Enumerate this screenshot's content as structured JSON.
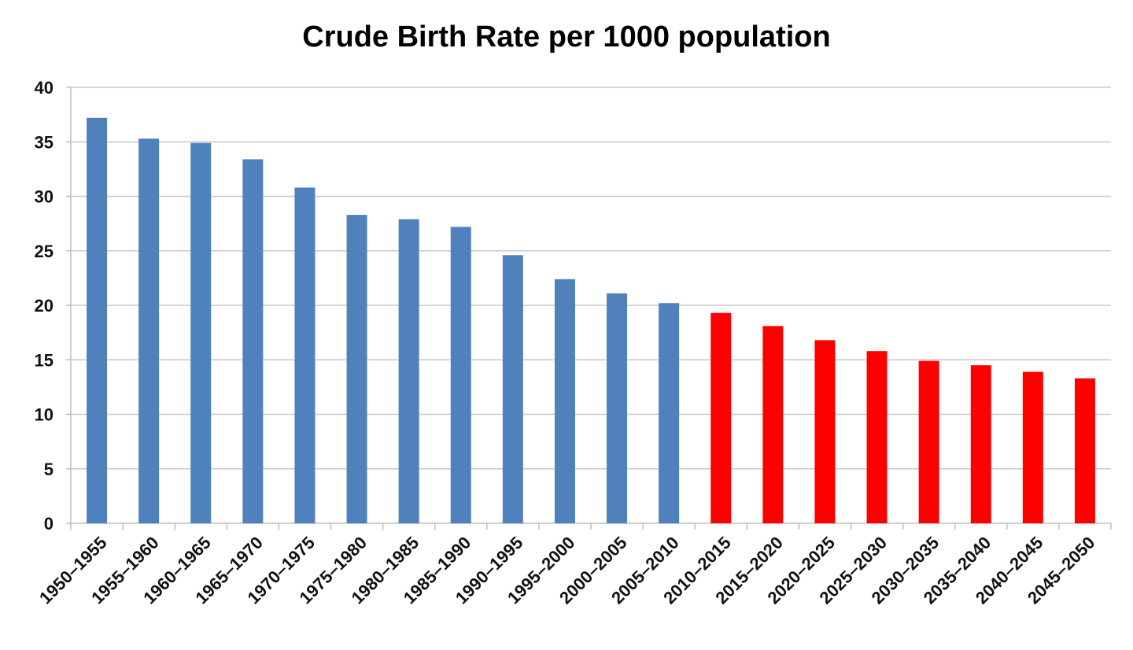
{
  "chart_data": {
    "type": "bar",
    "title": "Crude Birth Rate per 1000 population",
    "xlabel": "",
    "ylabel": "",
    "ylim": [
      0,
      40
    ],
    "yticks": [
      0,
      5,
      10,
      15,
      20,
      25,
      30,
      35,
      40
    ],
    "grid": true,
    "categories": [
      "1950–1955",
      "1955–1960",
      "1960–1965",
      "1965–1970",
      "1970–1975",
      "1975–1980",
      "1980–1985",
      "1985–1990",
      "1990–1995",
      "1995–2000",
      "2000–2005",
      "2005–2010",
      "2010–2015",
      "2015–2020",
      "2020–2025",
      "2025–2030",
      "2030–2035",
      "2035–2040",
      "2040–2045",
      "2045–2050"
    ],
    "values": [
      37.2,
      35.3,
      34.9,
      33.4,
      30.8,
      28.3,
      27.9,
      27.2,
      24.6,
      22.4,
      21.1,
      20.2,
      19.3,
      18.1,
      16.8,
      15.8,
      14.9,
      14.5,
      13.9,
      13.3
    ],
    "colors": {
      "historical": "#4f81bd",
      "projected": "#ff0000",
      "grid": "#c8c8c8",
      "axis": "#bfbfbf"
    },
    "bar_color_groups": [
      "historical",
      "historical",
      "historical",
      "historical",
      "historical",
      "historical",
      "historical",
      "historical",
      "historical",
      "historical",
      "historical",
      "historical",
      "projected",
      "projected",
      "projected",
      "projected",
      "projected",
      "projected",
      "projected",
      "projected"
    ]
  }
}
